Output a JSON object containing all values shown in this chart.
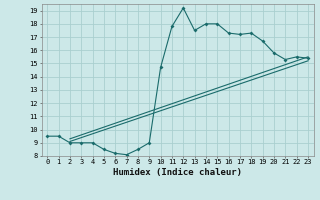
{
  "xlabel": "Humidex (Indice chaleur)",
  "background_color": "#cce8e8",
  "grid_color": "#aacfcf",
  "line_color": "#1a6b6b",
  "xlim": [
    -0.5,
    23.5
  ],
  "ylim": [
    8,
    19.5
  ],
  "yticks": [
    8,
    9,
    10,
    11,
    12,
    13,
    14,
    15,
    16,
    17,
    18,
    19
  ],
  "xticks": [
    0,
    1,
    2,
    3,
    4,
    5,
    6,
    7,
    8,
    9,
    10,
    11,
    12,
    13,
    14,
    15,
    16,
    17,
    18,
    19,
    20,
    21,
    22,
    23
  ],
  "line1_x": [
    0,
    1,
    2,
    3,
    4,
    5,
    6,
    7,
    8,
    9,
    10,
    11,
    12,
    13,
    14,
    15,
    16,
    17,
    18,
    19,
    20,
    21,
    22,
    23
  ],
  "line1_y": [
    9.5,
    9.5,
    9.0,
    9.0,
    9.0,
    8.5,
    8.2,
    8.1,
    8.5,
    9.0,
    14.7,
    17.8,
    19.2,
    17.5,
    18.0,
    18.0,
    17.3,
    17.2,
    17.3,
    16.7,
    15.8,
    15.3,
    15.5,
    15.4
  ],
  "line2_x": [
    2,
    23
  ],
  "line2_y": [
    9.3,
    15.5
  ],
  "line3_x": [
    2,
    23
  ],
  "line3_y": [
    9.1,
    15.2
  ]
}
